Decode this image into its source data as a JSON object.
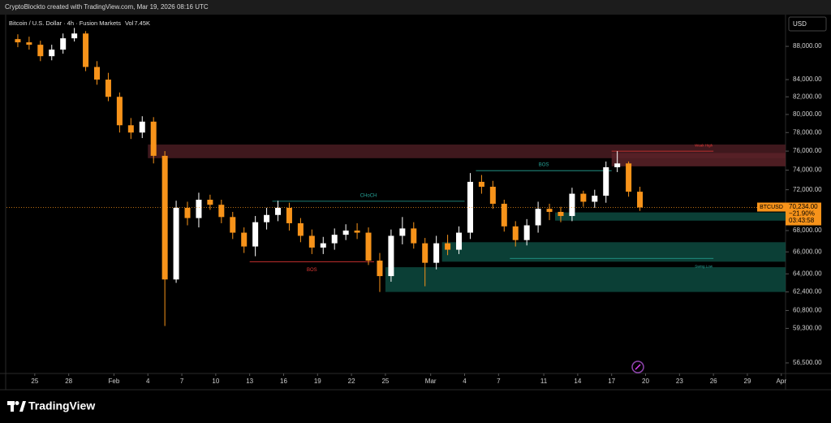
{
  "chart_data": {
    "type": "candlestick",
    "title": "CryptoBlockto created with TradingView.com, Mar 19, 2026 08:16 UTC",
    "subtitle": "Bitcoin / U.S. Dollar · 4h · Fusion Markets",
    "volume_label": "Vol",
    "volume": "7.45K",
    "currency": "USD",
    "brand": "TradingView",
    "log_scale": true,
    "up_color": "#ffffff",
    "down_color": "#f7931a",
    "x": [
      "2026-01-23",
      "2026-01-24",
      "2026-01-25",
      "2026-01-26",
      "2026-01-27",
      "2026-01-28",
      "2026-01-29",
      "2026-01-30",
      "2026-01-31",
      "2026-02-01",
      "2026-02-02",
      "2026-02-03",
      "2026-02-04",
      "2026-02-05",
      "2026-02-06",
      "2026-02-07",
      "2026-02-08",
      "2026-02-09",
      "2026-02-10",
      "2026-02-11",
      "2026-02-12",
      "2026-02-13",
      "2026-02-14",
      "2026-02-15",
      "2026-02-16",
      "2026-02-17",
      "2026-02-18",
      "2026-02-19",
      "2026-02-20",
      "2026-02-21",
      "2026-02-22",
      "2026-02-23",
      "2026-02-24",
      "2026-02-25",
      "2026-02-26",
      "2026-02-27",
      "2026-02-28",
      "2026-03-01",
      "2026-03-02",
      "2026-03-03",
      "2026-03-04",
      "2026-03-05",
      "2026-03-06",
      "2026-03-07",
      "2026-03-08",
      "2026-03-09",
      "2026-03-10",
      "2026-03-11",
      "2026-03-12",
      "2026-03-13",
      "2026-03-14",
      "2026-03-15",
      "2026-03-16",
      "2026-03-17",
      "2026-03-18",
      "2026-03-19"
    ],
    "open": [
      88900,
      88500,
      88200,
      86800,
      87600,
      89000,
      89600,
      85500,
      84000,
      82000,
      78800,
      78000,
      79200,
      75500,
      63500,
      70200,
      69200,
      71000,
      70500,
      69300,
      67800,
      66500,
      68800,
      69500,
      70200,
      68700,
      67500,
      66400,
      66800,
      67600,
      68000,
      67800,
      65200,
      63800,
      67500,
      68200,
      66800,
      65000,
      66800,
      66200,
      67800,
      72800,
      72300,
      70600,
      68400,
      67100,
      68500,
      70100,
      69800,
      69400,
      71600,
      70800,
      71400,
      74300,
      74700,
      71800
    ],
    "high": [
      89500,
      89200,
      88700,
      88200,
      89600,
      90300,
      89900,
      86200,
      84800,
      82500,
      79600,
      79800,
      79700,
      76000,
      70900,
      70800,
      71700,
      71500,
      71000,
      69800,
      68300,
      69400,
      70200,
      70900,
      70700,
      69200,
      68100,
      67400,
      68200,
      68600,
      68700,
      68300,
      65900,
      68100,
      69300,
      68800,
      67300,
      67500,
      67600,
      68400,
      73700,
      73500,
      72900,
      71000,
      68900,
      69100,
      70800,
      70600,
      70300,
      72200,
      71900,
      72000,
      74900,
      76000,
      74900,
      72300
    ],
    "low": [
      87900,
      87600,
      86200,
      86300,
      87100,
      88600,
      85000,
      83400,
      81500,
      78000,
      77300,
      77400,
      74700,
      59500,
      63200,
      68500,
      68300,
      70000,
      68700,
      67200,
      65900,
      65600,
      68100,
      68900,
      68000,
      66900,
      65800,
      65800,
      66200,
      67100,
      67200,
      64800,
      62400,
      63300,
      66700,
      66300,
      62900,
      64400,
      65700,
      65800,
      67200,
      71600,
      70100,
      67900,
      66500,
      66600,
      67800,
      69000,
      68800,
      68900,
      70300,
      70200,
      70700,
      73800,
      71300,
      69900
    ],
    "close": [
      88500,
      88200,
      86800,
      87600,
      89000,
      89600,
      85500,
      84000,
      82000,
      78800,
      78000,
      79200,
      75500,
      63500,
      70200,
      69200,
      71000,
      70500,
      69300,
      67800,
      66500,
      68800,
      69500,
      70200,
      68700,
      67500,
      66400,
      66800,
      67600,
      68000,
      67800,
      65200,
      63800,
      67500,
      68200,
      66800,
      65000,
      66800,
      66200,
      67800,
      72800,
      72300,
      70600,
      68400,
      67100,
      68500,
      70100,
      69800,
      69400,
      71600,
      70800,
      71400,
      74300,
      74700,
      71800,
      70234
    ],
    "xlim": [
      "2026-01-22T12:00",
      "2026-04-01T09:00"
    ],
    "xticks": [
      {
        "value": "2026-01-25",
        "label": "25"
      },
      {
        "value": "2026-01-28",
        "label": "28"
      },
      {
        "value": "2026-02-01",
        "label": "Feb"
      },
      {
        "value": "2026-02-04",
        "label": "4"
      },
      {
        "value": "2026-02-07",
        "label": "7"
      },
      {
        "value": "2026-02-10",
        "label": "10"
      },
      {
        "value": "2026-02-13",
        "label": "13"
      },
      {
        "value": "2026-02-16",
        "label": "16"
      },
      {
        "value": "2026-02-19",
        "label": "19"
      },
      {
        "value": "2026-02-22",
        "label": "22"
      },
      {
        "value": "2026-02-25",
        "label": "25"
      },
      {
        "value": "2026-03-01",
        "label": "Mar"
      },
      {
        "value": "2026-03-04",
        "label": "4"
      },
      {
        "value": "2026-03-07",
        "label": "7"
      },
      {
        "value": "2026-03-11",
        "label": "11"
      },
      {
        "value": "2026-03-14",
        "label": "14"
      },
      {
        "value": "2026-03-17",
        "label": "17"
      },
      {
        "value": "2026-03-20",
        "label": "20"
      },
      {
        "value": "2026-03-23",
        "label": "23"
      },
      {
        "value": "2026-03-26",
        "label": "26"
      },
      {
        "value": "2026-03-29",
        "label": "29"
      },
      {
        "value": "2026-04-01",
        "label": "Apr"
      }
    ],
    "ylim": [
      55670,
      92000
    ],
    "yticks": [
      {
        "value": 88000,
        "label": "88,000.00"
      },
      {
        "value": 84000,
        "label": "84,000.00"
      },
      {
        "value": 82000,
        "label": "82,000.00"
      },
      {
        "value": 80000,
        "label": "80,000.00"
      },
      {
        "value": 78000,
        "label": "78,000.00"
      },
      {
        "value": 76000,
        "label": "76,000.00"
      },
      {
        "value": 74000,
        "label": "74,000.00"
      },
      {
        "value": 72000,
        "label": "72,000.00"
      },
      {
        "value": 68000,
        "label": "68,000.00"
      },
      {
        "value": 66000,
        "label": "66,000.00"
      },
      {
        "value": 64000,
        "label": "64,000.00"
      },
      {
        "value": 62400,
        "label": "62,400.00"
      },
      {
        "value": 60800,
        "label": "60,800.00"
      },
      {
        "value": 59300,
        "label": "59,300.00"
      },
      {
        "value": 56500,
        "label": "56,500.00"
      }
    ],
    "zones": [
      {
        "from": "2026-02-04",
        "top": 76700,
        "bottom": 75250,
        "color": "#4a1c22"
      },
      {
        "from": "2026-03-17",
        "top": 75800,
        "bottom": 74400,
        "color": "#5a2228"
      },
      {
        "from": "2026-03-12",
        "top": 69750,
        "bottom": 68950,
        "color": "#0d4a40"
      },
      {
        "from": "2026-03-02",
        "top": 66900,
        "bottom": 65100,
        "color": "#0d4a40"
      },
      {
        "from": "2026-02-25",
        "top": 64600,
        "bottom": 62400,
        "color": "#0d4a40"
      }
    ],
    "levels": [
      {
        "text": "CHoCH",
        "from": "2026-02-15",
        "to": "2026-03-04",
        "price": 70850,
        "color": "#26a69a"
      },
      {
        "text": "BOS",
        "from": "2026-02-13",
        "to": "2026-02-24",
        "price": 65100,
        "color": "#e53935"
      },
      {
        "text": "BOS",
        "from": "2026-03-05",
        "to": "2026-03-17",
        "price": 73950,
        "color": "#26a69a"
      },
      {
        "text": "Swing Low",
        "from": "2026-03-08",
        "to": "2026-03-26",
        "price": 65400,
        "color": "#26a69a"
      },
      {
        "text": "Weak High",
        "from": "2026-03-17",
        "to": "2026-03-26",
        "price": 76000,
        "color": "#e53935"
      }
    ],
    "last": {
      "symbol": "BTCUSD",
      "value": 70234,
      "label": "70,234.00",
      "change": "−21.90%",
      "countdown": "03:43:58"
    }
  }
}
